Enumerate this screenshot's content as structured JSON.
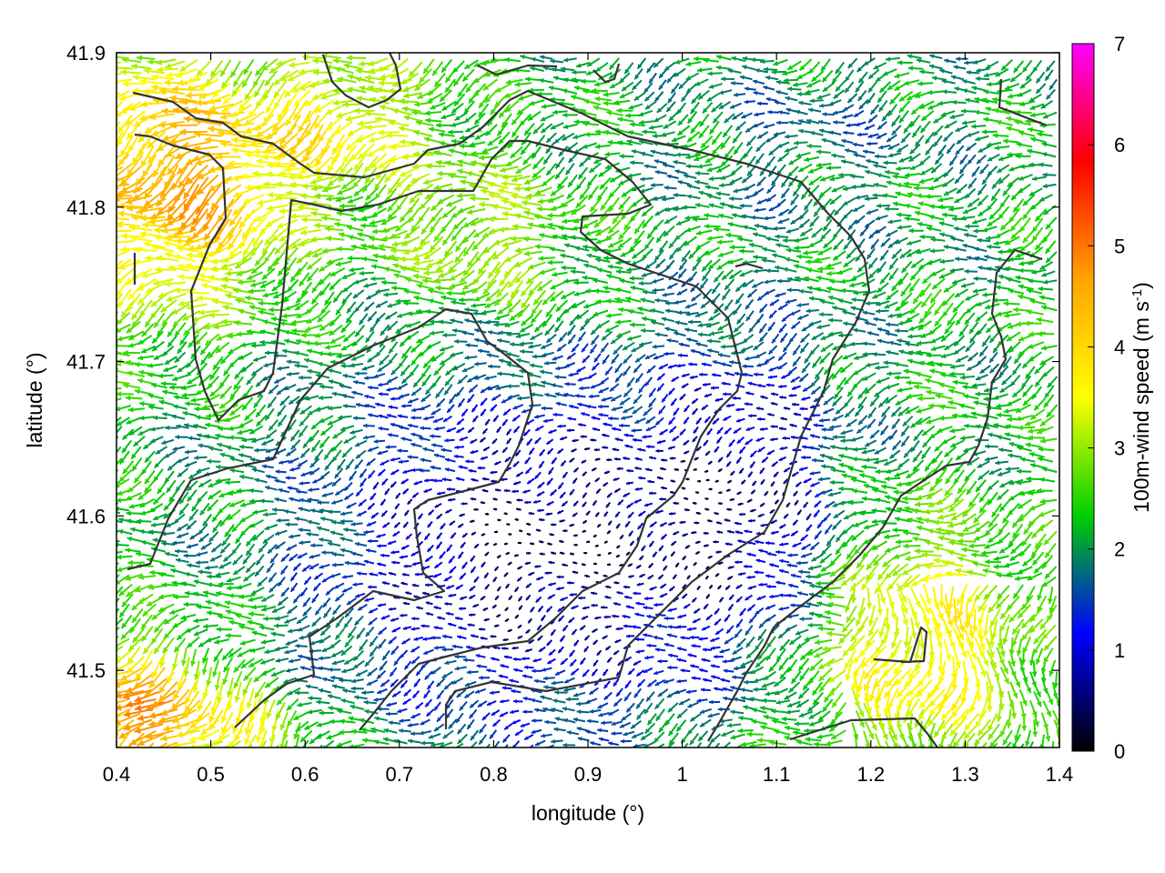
{
  "chart_data": {
    "type": "vector-field",
    "xlabel": "longitude (°)",
    "ylabel": "latitude (°)",
    "xlim": [
      0.4,
      1.4
    ],
    "ylim": [
      41.45,
      41.9
    ],
    "x_ticks": [
      "0.4",
      "0.5",
      "0.6",
      "0.7",
      "0.8",
      "0.9",
      "1",
      "1.1",
      "1.2",
      "1.3",
      "1.4"
    ],
    "y_ticks": [
      "41.5",
      "41.6",
      "41.7",
      "41.8",
      "41.9"
    ],
    "colorbar": {
      "label_main": "100m-wind speed (m s",
      "label_sup": "-1",
      "label_close": ")",
      "range": [
        0,
        7
      ],
      "ticks": [
        "0",
        "1",
        "2",
        "3",
        "4",
        "5",
        "6",
        "7"
      ],
      "colors": [
        "#000000",
        "#0000ff",
        "#00d000",
        "#ffff00",
        "#ffa500",
        "#ff0000",
        "#ff00ff"
      ]
    },
    "grid": false,
    "wind_direction": "predominantly from east/northeast, converging toward the south-west in the lower-left corner",
    "speed_regions": [
      {
        "area": "north-west (lon 0.40–0.60, lat 41.75–41.90)",
        "speed_range": [
          3.5,
          5.5
        ]
      },
      {
        "area": "central valley (lon 0.60–1.05, lat 41.47–41.70)",
        "speed_range": [
          0.3,
          1.5
        ]
      },
      {
        "area": "east (lon 1.10–1.40, lat 41.60–41.90)",
        "speed_range": [
          1.5,
          2.5
        ]
      },
      {
        "area": "south-east (lon 1.15–1.40, lat 41.45–41.60)",
        "speed_range": [
          3.0,
          4.5
        ]
      },
      {
        "area": "south-west corner (lon 0.40–0.55, lat 41.45–41.52)",
        "speed_range": [
          4.0,
          5.5
        ]
      }
    ],
    "contour_color": "#333333"
  }
}
